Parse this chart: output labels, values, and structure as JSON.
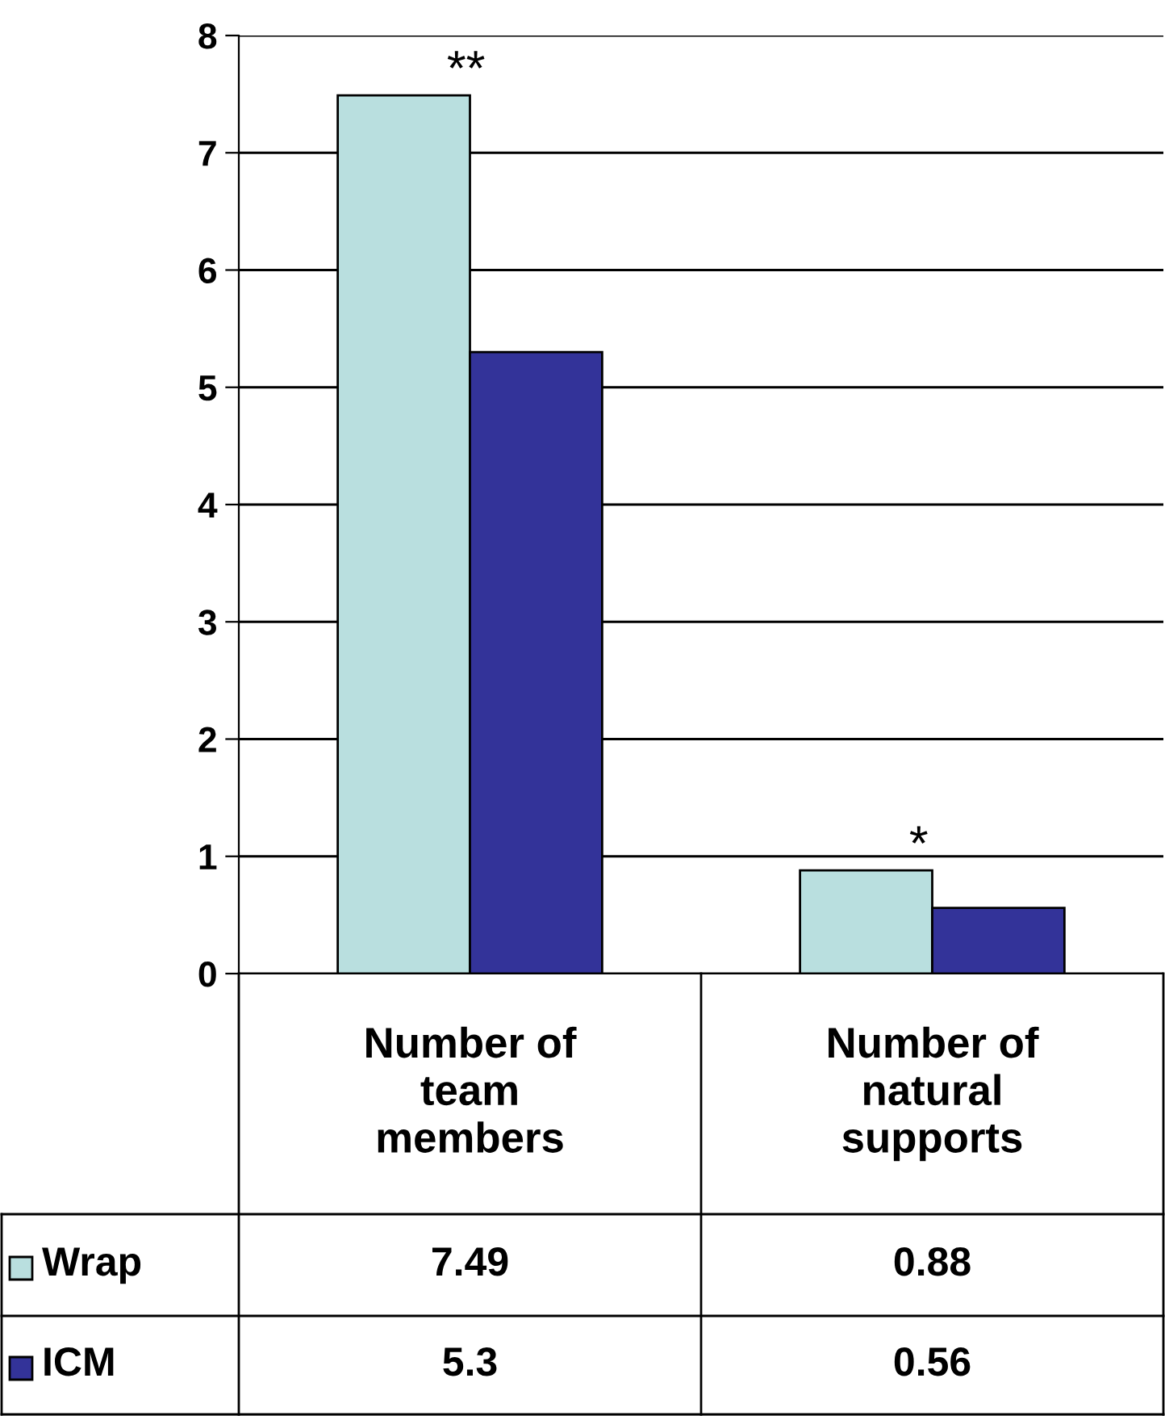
{
  "chart_data": {
    "type": "bar",
    "categories": [
      "Number of team members",
      "Number of natural supports"
    ],
    "series": [
      {
        "name": "Wrap",
        "color": "#b9dfdf",
        "values": [
          7.49,
          0.88
        ]
      },
      {
        "name": "ICM",
        "color": "#333399",
        "values": [
          5.3,
          0.56
        ]
      }
    ],
    "ylim": [
      0,
      8
    ],
    "yticks": [
      0,
      1,
      2,
      3,
      4,
      5,
      6,
      7,
      8
    ],
    "grid": "y",
    "legend": "bottom",
    "data_labels": true,
    "annotations": [
      {
        "text": "**",
        "x": "Number of team members",
        "y": 7.49
      },
      {
        "text": "*",
        "x": "Number of natural supports",
        "y": 0.88
      }
    ]
  }
}
